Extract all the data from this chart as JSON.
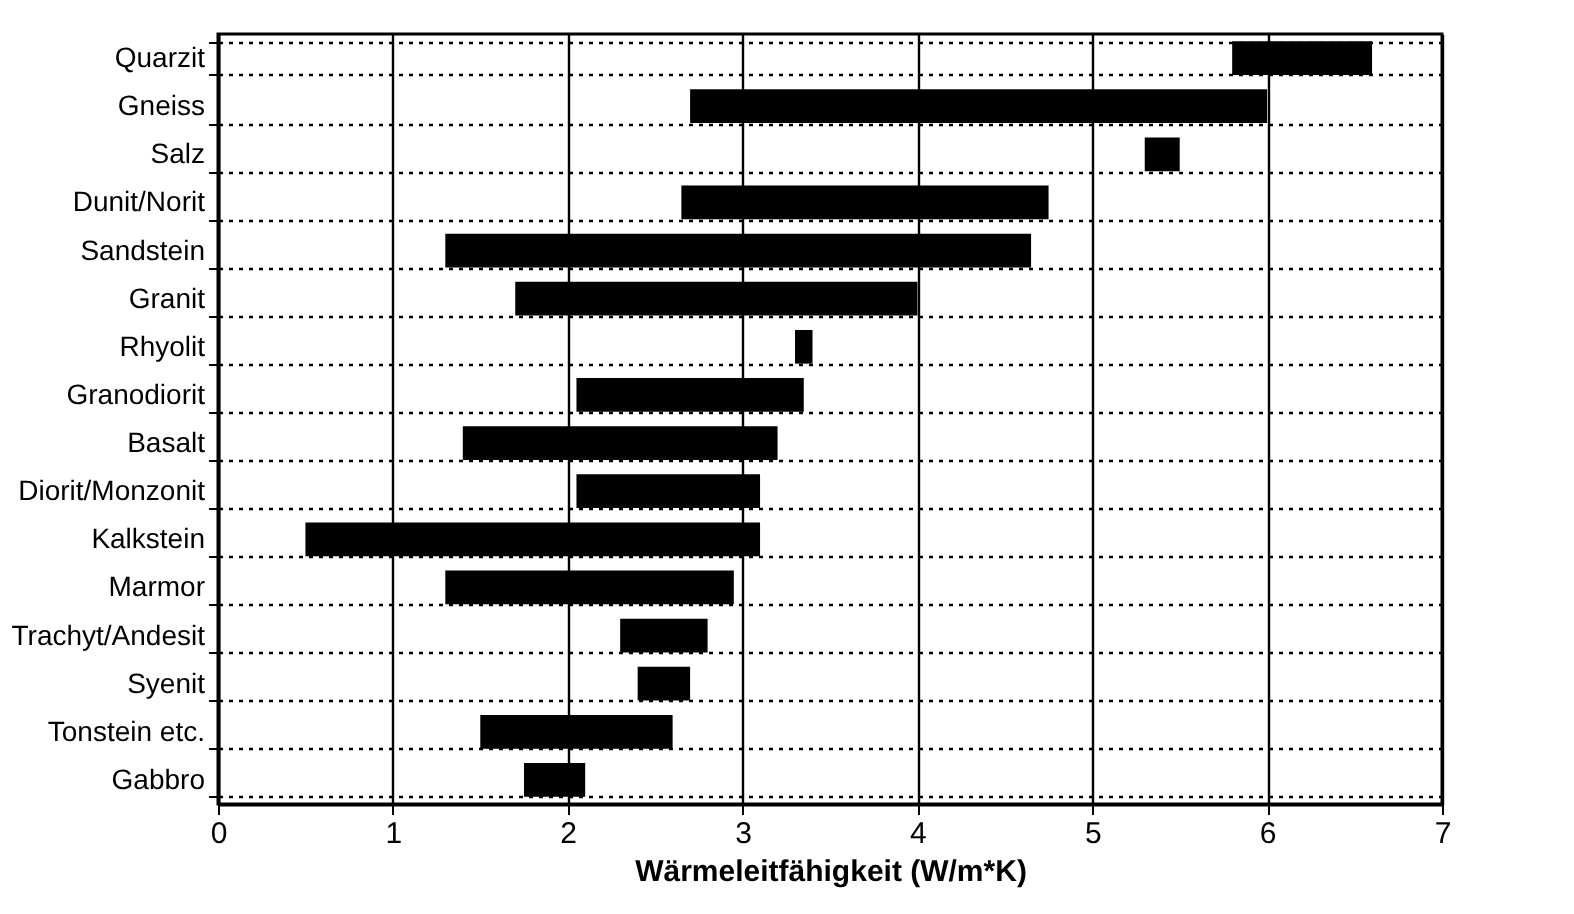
{
  "chart_data": {
    "type": "bar",
    "orientation": "horizontal",
    "xlabel": "Wärmeleitfähigkeit (W/m*K)",
    "categories": [
      "Quarzit",
      "Gneiss",
      "Salz",
      "Dunit/Norit",
      "Sandstein",
      "Granit",
      "Rhyolit",
      "Granodiorit",
      "Basalt",
      "Diorit/Monzonit",
      "Kalkstein",
      "Marmor",
      "Trachyt/Andesit",
      "Syenit",
      "Tonstein etc.",
      "Gabbro"
    ],
    "base": [
      5.8,
      2.7,
      5.3,
      2.65,
      1.3,
      1.7,
      3.3,
      2.05,
      1.4,
      2.05,
      0.5,
      1.3,
      2.3,
      2.4,
      1.5,
      1.75
    ],
    "values": [
      0.8,
      3.3,
      0.2,
      2.1,
      3.35,
      2.3,
      0.1,
      1.3,
      1.8,
      1.05,
      2.6,
      1.65,
      0.5,
      0.3,
      1.1,
      0.35
    ],
    "color": "#000000",
    "xlim": [
      0,
      7
    ],
    "xticks": [
      0,
      1,
      2,
      3,
      4,
      5,
      6,
      7
    ],
    "grid": true
  }
}
